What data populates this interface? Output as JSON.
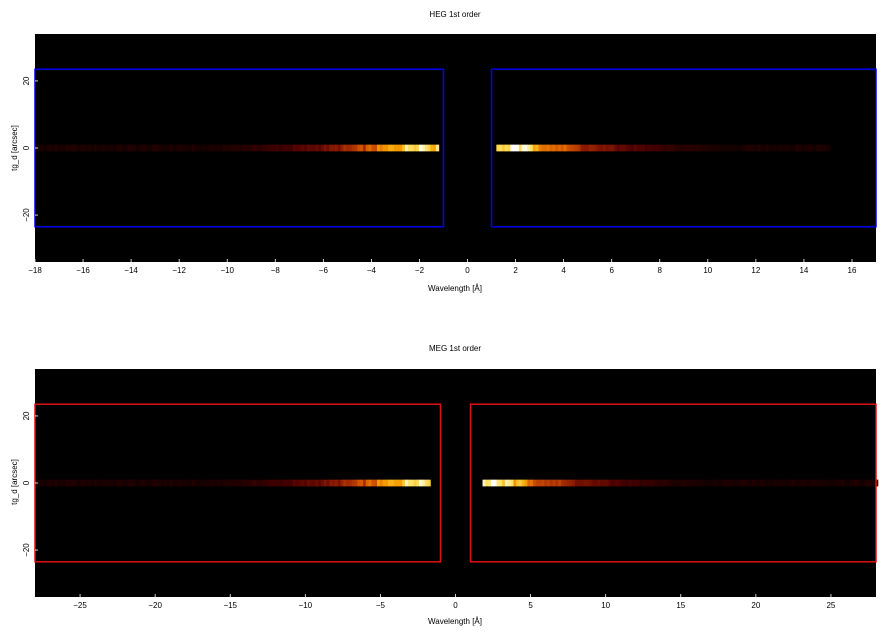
{
  "chart_data": [
    {
      "type": "heatmap",
      "title": "HEG 1st order",
      "xlabel": "Wavelength [Å]",
      "ylabel": "tg_d [arcsec]",
      "xlim": [
        -18,
        17
      ],
      "ylim": [
        -34,
        34
      ],
      "xticks": [
        -18,
        -16,
        -14,
        -12,
        -10,
        -8,
        -6,
        -4,
        -2,
        0,
        2,
        4,
        6,
        8,
        10,
        12,
        14,
        16
      ],
      "yticks": [
        -20,
        0,
        20
      ],
      "background_color": "#000000",
      "box_color": "#0000ee",
      "extraction_boxes": [
        {
          "x": [
            -18,
            -1.0
          ],
          "y": [
            -23.5,
            23.5
          ]
        },
        {
          "x": [
            1.0,
            17
          ],
          "y": [
            -23.5,
            23.5
          ]
        }
      ],
      "spectrum": {
        "y": 0,
        "segments": [
          {
            "x": [
              -18.0,
              -1.2
            ],
            "peak": -2.0
          },
          {
            "x": [
              1.2,
              15.0
            ],
            "peak": 2.0
          }
        ]
      },
      "colormap": [
        "#000000",
        "#4a0000",
        "#8b1a00",
        "#d45500",
        "#f5a000",
        "#ffe060",
        "#ffffff"
      ]
    },
    {
      "type": "heatmap",
      "title": "MEG 1st order",
      "xlabel": "Wavelength [Å]",
      "ylabel": "tg_d [arcsec]",
      "xlim": [
        -28,
        28
      ],
      "ylim": [
        -34,
        34
      ],
      "xticks": [
        -25,
        -20,
        -15,
        -10,
        -5,
        0,
        5,
        10,
        15,
        20,
        25
      ],
      "yticks": [
        -20,
        0,
        20
      ],
      "background_color": "#000000",
      "box_color": "#dd1111",
      "extraction_boxes": [
        {
          "x": [
            -28,
            -1.0
          ],
          "y": [
            -23.5,
            23.5
          ]
        },
        {
          "x": [
            1.0,
            28
          ],
          "y": [
            -23.5,
            23.5
          ]
        }
      ],
      "spectrum": {
        "y": 0,
        "segments": [
          {
            "x": [
              -28.0,
              -1.8
            ],
            "peak": -2.5
          },
          {
            "x": [
              1.8,
              28.0
            ],
            "peak": 2.5
          }
        ]
      },
      "colormap": [
        "#000000",
        "#4a0000",
        "#8b1a00",
        "#d45500",
        "#f5a000",
        "#ffe060",
        "#ffffff"
      ]
    }
  ]
}
